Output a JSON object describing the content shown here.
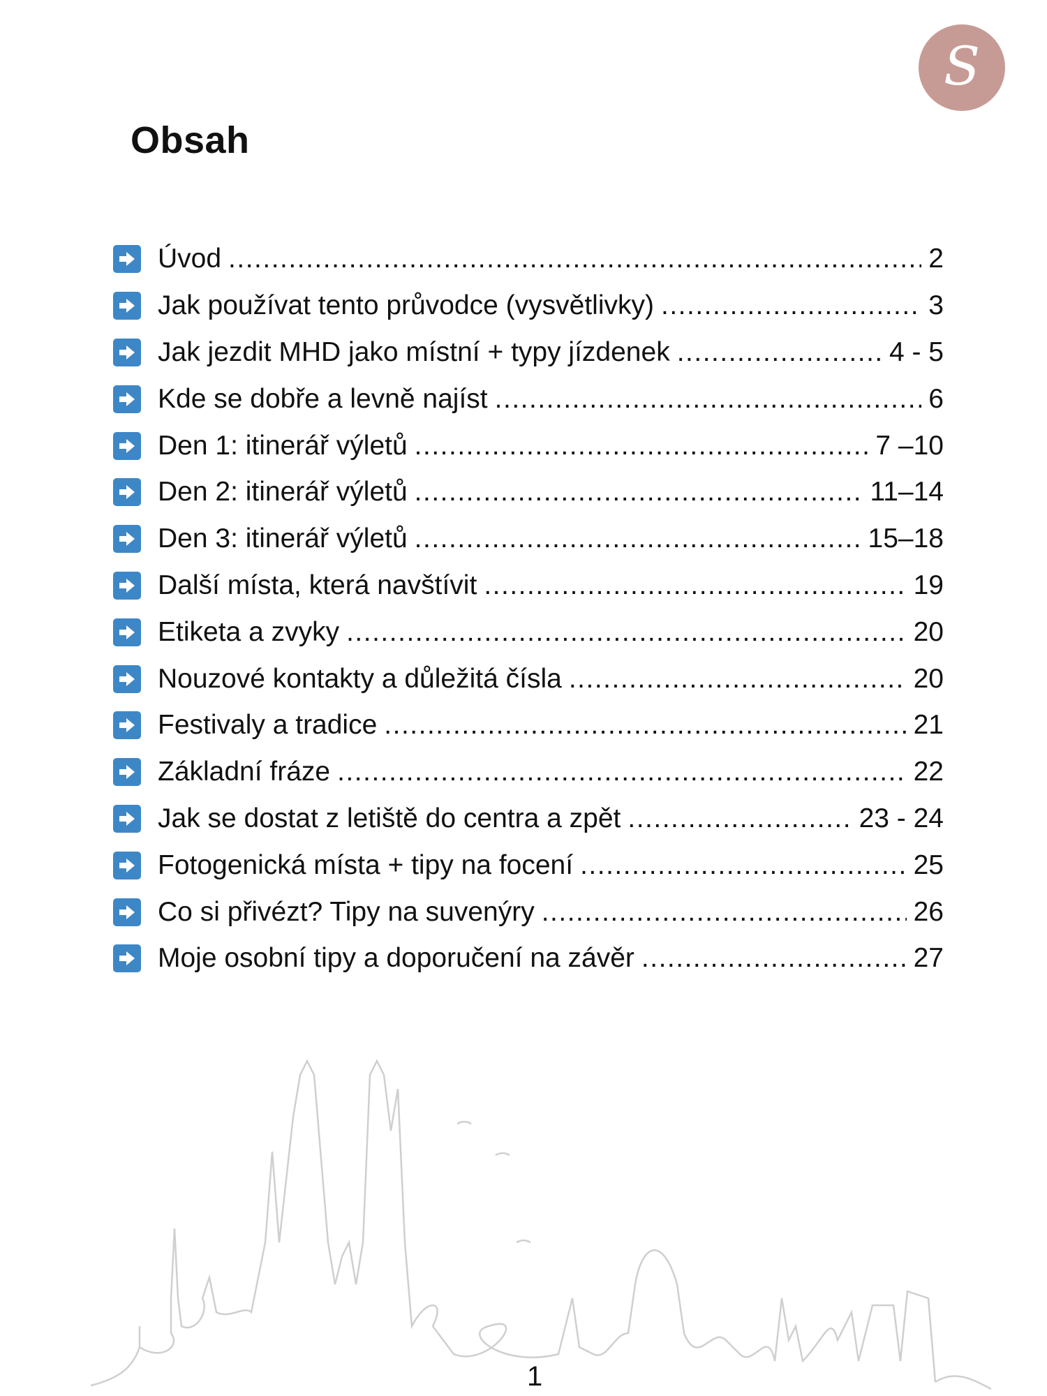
{
  "logo": {
    "letter": "S",
    "color": "#c79b95"
  },
  "title": "Obsah",
  "accent": "#3d87c7",
  "items": [
    {
      "label": "Úvod",
      "page": "2"
    },
    {
      "label": "Jak používat tento průvodce (vysvětlivky)",
      "page": "3"
    },
    {
      "label": "Jak jezdit MHD jako místní + typy jízdenek",
      "page": "4 - 5"
    },
    {
      "label": "Kde se dobře a levně najíst",
      "page": "6"
    },
    {
      "label": "Den 1: itinerář výletů",
      "page": "7 –10"
    },
    {
      "label": "Den 2: itinerář výletů",
      "page": "11–14"
    },
    {
      "label": "Den 3: itinerář výletů",
      "page": "15–18"
    },
    {
      "label": "Další místa, která navštívit",
      "page": "19"
    },
    {
      "label": "Etiketa a zvyky",
      "page": "20"
    },
    {
      "label": "Nouzové kontakty a důležitá čísla",
      "page": "20"
    },
    {
      "label": "Festivaly a tradice",
      "page": "21"
    },
    {
      "label": "Základní fráze",
      "page": "22"
    },
    {
      "label": "Jak se dostat z letiště do centra a zpět",
      "page": "23 - 24"
    },
    {
      "label": "Fotogenická místa + tipy na focení",
      "page": "25"
    },
    {
      "label": "Co si přivézt? Tipy na suvenýry",
      "page": "26"
    },
    {
      "label": "Moje osobní tipy a doporučení na závěr",
      "page": "27"
    }
  ],
  "page_number": "1"
}
